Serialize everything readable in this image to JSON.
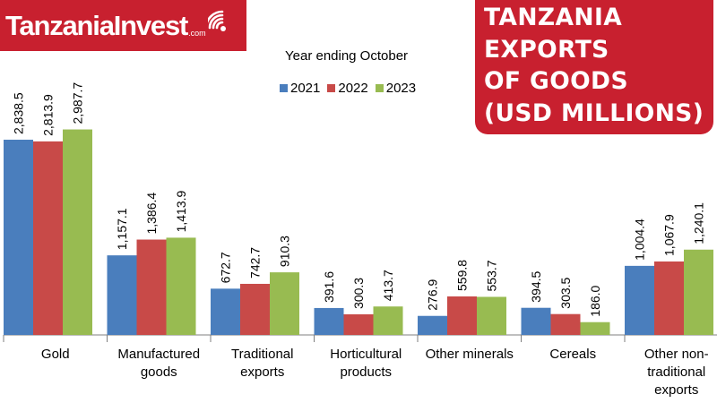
{
  "brand": {
    "logo_text": "TanzaniaInvest",
    "logo_suffix": ".com"
  },
  "title_lines": [
    "TANZANIA",
    "EXPORTS",
    "OF GOODS",
    "(USD MILLIONS)"
  ],
  "colors": {
    "brand_red": "#c8202f",
    "series_2021": "#4a7ebd",
    "series_2022": "#c84a48",
    "series_2023": "#98bb51"
  },
  "chart_data": {
    "type": "bar",
    "title": "TANZANIA EXPORTS OF GOODS (USD MILLIONS)",
    "legend_title": "Year ending October",
    "legend_position": "top-center",
    "categories": [
      [
        "Gold"
      ],
      [
        "Manufactured",
        "goods"
      ],
      [
        "Traditional",
        "exports"
      ],
      [
        "Horticultural",
        "products"
      ],
      [
        "Other minerals"
      ],
      [
        "Cereals"
      ],
      [
        "Other non-",
        "traditional",
        "exports"
      ]
    ],
    "series": [
      {
        "name": "2021",
        "values": [
          2838.5,
          1157.1,
          672.7,
          391.6,
          276.9,
          394.5,
          1004.4
        ],
        "labels": [
          "2,838.5",
          "1,157.1",
          "672.7",
          "391.6",
          "276.9",
          "394.5",
          "1,004.4"
        ]
      },
      {
        "name": "2022",
        "values": [
          2813.9,
          1386.4,
          742.7,
          300.3,
          559.8,
          303.5,
          1067.9
        ],
        "labels": [
          "2,813.9",
          "1,386.4",
          "742.7",
          "300.3",
          "559.8",
          "303.5",
          "1,067.9"
        ]
      },
      {
        "name": "2023",
        "values": [
          2987.7,
          1413.9,
          910.3,
          413.7,
          553.7,
          186.0,
          1240.1
        ],
        "labels": [
          "2,987.7",
          "1,413.9",
          "910.3",
          "413.7",
          "553.7",
          "186.0",
          "1,240.1"
        ]
      }
    ],
    "ylim": [
      0,
      3000
    ],
    "grid": false
  }
}
